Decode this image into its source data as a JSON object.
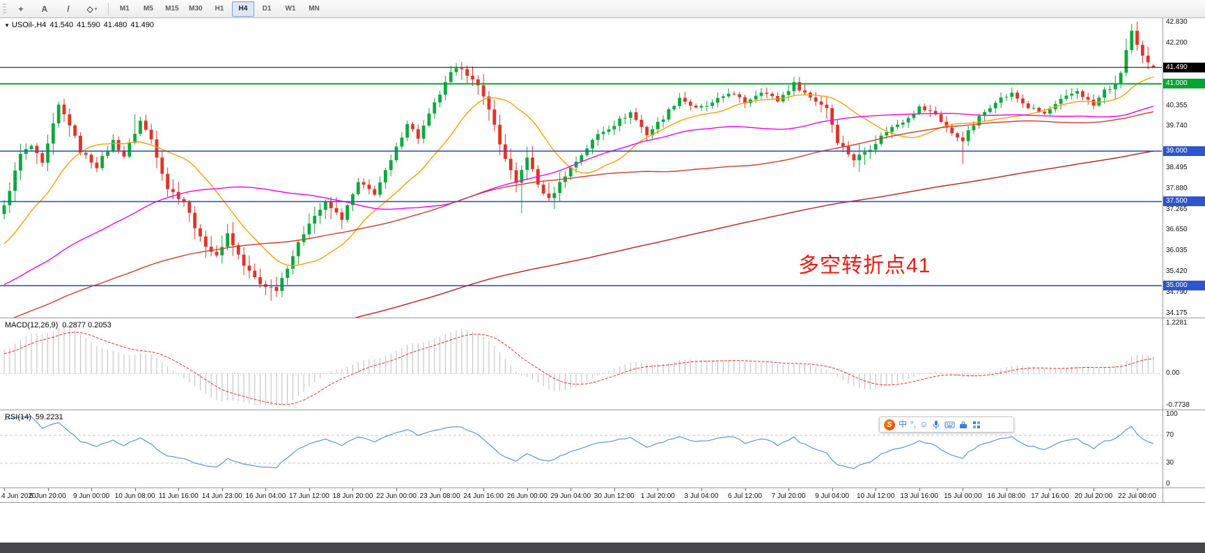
{
  "toolbar": {
    "tools": [
      {
        "id": "crosshair",
        "glyph": "+"
      },
      {
        "id": "text",
        "glyph": "A"
      },
      {
        "id": "trendline",
        "glyph": "/"
      },
      {
        "id": "shapes",
        "glyph": "◇",
        "caret": "▾"
      }
    ],
    "timeframes": [
      "M1",
      "M5",
      "M15",
      "M30",
      "H1",
      "H4",
      "D1",
      "W1",
      "MN"
    ],
    "active_timeframe": "H4"
  },
  "chart": {
    "symbol_header": {
      "arrow": "▼",
      "title": "USOil-,H4",
      "open": "41.540",
      "high": "41.590",
      "low": "41.480",
      "close": "41.490"
    },
    "annotation": {
      "text": "多空转折点41",
      "color": "#ee1b10"
    },
    "y_axis": {
      "ticks": [
        "42.830",
        "42.200",
        "40.355",
        "39.740",
        "38.495",
        "37.880",
        "37.265",
        "36.650",
        "36.035",
        "35.420",
        "34.790",
        "34.175"
      ],
      "badges": [
        {
          "label": "41.490",
          "price": 41.49,
          "bg": "#000000"
        },
        {
          "label": "41.000",
          "price": 41.0,
          "bg": "#00a62f"
        },
        {
          "label": "39.000",
          "price": 39.0,
          "bg": "#2f55cd"
        },
        {
          "label": "37.500",
          "price": 37.5,
          "bg": "#2f55cd"
        },
        {
          "label": "35.000",
          "price": 35.0,
          "bg": "#2f55cd"
        }
      ]
    },
    "x_axis": {
      "labels": [
        "4 Jun 2020",
        "5 Jun 20:00",
        "9 Jun 00:00",
        "10 Jun 08:00",
        "11 Jun 16:00",
        "14 Jun 23:00",
        "16 Jun 04:00",
        "17 Jun 12:00",
        "18 Jun 20:00",
        "22 Jun 00:00",
        "23 Jun 08:00",
        "24 Jun 16:00",
        "26 Jun 00:00",
        "29 Jun 04:00",
        "30 Jun 12:00",
        "1 Jul 20:00",
        "3 Jul 04:00",
        "6 Jul 12:00",
        "7 Jul 20:00",
        "9 Jul 04:00",
        "10 Jul 12:00",
        "13 Jul 16:00",
        "15 Jul 00:00",
        "16 Jul 08:00",
        "17 Jul 16:00",
        "20 Jul 20:00",
        "22 Jul 00:00"
      ]
    }
  },
  "chart_data": {
    "type": "candlestick",
    "symbol": "USOil",
    "timeframe": "H4",
    "bar_count": 212,
    "price_range": {
      "max": 42.83,
      "min": 34.175
    },
    "quote": {
      "open": 41.54,
      "high": 41.59,
      "low": 41.48,
      "close": 41.49
    },
    "up_color": "#0caa3c",
    "down_color": "#e43227",
    "levels": [
      {
        "name": "bid-line",
        "price": 41.49,
        "color": "#000000",
        "width": 1
      },
      {
        "name": "resistance-41",
        "price": 41.0,
        "color": "#00a62f",
        "width": 2
      },
      {
        "name": "support-39",
        "price": 39.0,
        "color": "#2f55cd",
        "width": 1.6
      },
      {
        "name": "support-37-5",
        "price": 37.5,
        "color": "#2f55cd",
        "width": 1.6
      },
      {
        "name": "support-35",
        "price": 35.0,
        "color": "#2f55cd",
        "width": 1.6
      }
    ],
    "moving_averages": [
      {
        "name": "ma-fast",
        "period": 16,
        "color": "#ff9e00"
      },
      {
        "name": "ma-medium",
        "period": 55,
        "color": "#f000f0"
      },
      {
        "name": "ma-slow",
        "period": 110,
        "color": "#d23a2e"
      },
      {
        "name": "ma-slowest",
        "period": 230,
        "color": "#bf1f1f"
      }
    ],
    "trajectory": [
      [
        -240,
        24.5
      ],
      [
        -200,
        26.8
      ],
      [
        -160,
        28.6
      ],
      [
        -120,
        31.2
      ],
      [
        -80,
        33.0
      ],
      [
        -40,
        34.3
      ],
      [
        -15,
        35.4
      ],
      [
        -6,
        36.3
      ],
      [
        0,
        37.35
      ],
      [
        3,
        38.9
      ],
      [
        5,
        39.15
      ],
      [
        7,
        38.6
      ],
      [
        10,
        40.35
      ],
      [
        12,
        39.8
      ],
      [
        14,
        39.0
      ],
      [
        17,
        38.55
      ],
      [
        20,
        39.3
      ],
      [
        22,
        38.85
      ],
      [
        25,
        39.9
      ],
      [
        27,
        39.35
      ],
      [
        30,
        37.9
      ],
      [
        33,
        37.5
      ],
      [
        36,
        36.4
      ],
      [
        39,
        35.85
      ],
      [
        41,
        36.55
      ],
      [
        44,
        35.6
      ],
      [
        47,
        35.05
      ],
      [
        50,
        34.9
      ],
      [
        53,
        35.9
      ],
      [
        56,
        36.9
      ],
      [
        59,
        37.45
      ],
      [
        62,
        37.0
      ],
      [
        65,
        38.05
      ],
      [
        68,
        37.75
      ],
      [
        71,
        38.7
      ],
      [
        74,
        39.85
      ],
      [
        76,
        39.4
      ],
      [
        79,
        40.4
      ],
      [
        82,
        41.3
      ],
      [
        84,
        41.5
      ],
      [
        87,
        40.9
      ],
      [
        89,
        40.3
      ],
      [
        91,
        39.2
      ],
      [
        94,
        38.0
      ],
      [
        96,
        38.85
      ],
      [
        98,
        38.0
      ],
      [
        100,
        37.55
      ],
      [
        103,
        38.3
      ],
      [
        106,
        38.9
      ],
      [
        109,
        39.5
      ],
      [
        112,
        39.8
      ],
      [
        115,
        40.15
      ],
      [
        118,
        39.5
      ],
      [
        121,
        40.0
      ],
      [
        124,
        40.6
      ],
      [
        127,
        40.25
      ],
      [
        130,
        40.4
      ],
      [
        133,
        40.75
      ],
      [
        136,
        40.45
      ],
      [
        139,
        40.8
      ],
      [
        142,
        40.5
      ],
      [
        145,
        41.0
      ],
      [
        148,
        40.6
      ],
      [
        151,
        40.3
      ],
      [
        153,
        39.3
      ],
      [
        156,
        38.75
      ],
      [
        159,
        39.1
      ],
      [
        162,
        39.6
      ],
      [
        165,
        39.9
      ],
      [
        168,
        40.3
      ],
      [
        171,
        40.1
      ],
      [
        174,
        39.5
      ],
      [
        176,
        39.35
      ],
      [
        179,
        40.0
      ],
      [
        182,
        40.5
      ],
      [
        185,
        40.7
      ],
      [
        188,
        40.3
      ],
      [
        191,
        40.1
      ],
      [
        194,
        40.5
      ],
      [
        197,
        40.8
      ],
      [
        200,
        40.35
      ],
      [
        202,
        40.8
      ],
      [
        204,
        40.95
      ],
      [
        205,
        41.35
      ],
      [
        206,
        42.0
      ],
      [
        207,
        42.55
      ],
      [
        208,
        42.1
      ],
      [
        209,
        41.8
      ],
      [
        210,
        41.6
      ],
      [
        211,
        41.49
      ]
    ],
    "wick_overrides": [
      {
        "i": 24,
        "high": 40.1
      },
      {
        "i": 49,
        "low": 34.55
      },
      {
        "i": 95,
        "low": 37.15
      },
      {
        "i": 176,
        "low": 38.62
      },
      {
        "i": 207,
        "high": 42.78
      }
    ],
    "volatility_zones": [
      [
        0,
        12
      ],
      [
        28,
        62
      ],
      [
        84,
        102
      ],
      [
        150,
        160
      ],
      [
        204,
        211
      ]
    ],
    "indicators": {
      "macd": {
        "label": "MACD(12,26,9)",
        "values_text": "0.2877 0.2053",
        "params": [
          12,
          26,
          9
        ],
        "axis": [
          "1.2281",
          "0.00",
          "-0.7738"
        ],
        "range": {
          "max": 1.2281,
          "min": -0.7738
        },
        "histogram_color": "#bdbdbd",
        "signal_color": "#e03131"
      },
      "rsi": {
        "label": "RSI(14)",
        "value_text": "59.2231",
        "period": 14,
        "axis": [
          "100",
          "70",
          "30",
          "0"
        ],
        "levels": [
          70,
          30
        ],
        "line_color": "#4f8fd0"
      }
    }
  },
  "ime_bar": {
    "brand": "S",
    "mode": "中",
    "punctuation": "°,",
    "smiley": "☺"
  }
}
